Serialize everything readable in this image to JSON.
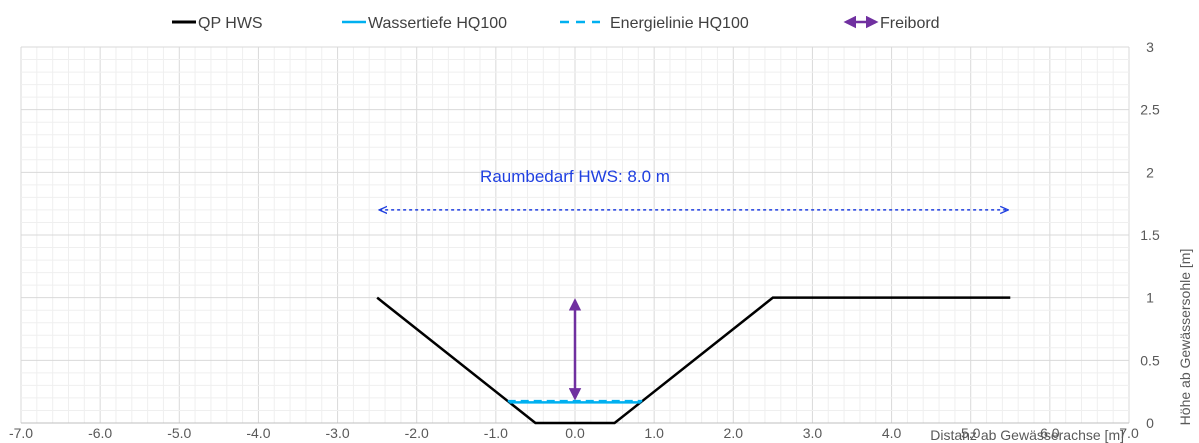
{
  "chart_data": {
    "type": "line",
    "xlabel": "Distanz ab Gewässerachse [m]",
    "ylabel": "Höhe ab Gewässersohle [m]",
    "xlim": [
      -7,
      7
    ],
    "ylim": [
      0,
      3
    ],
    "x_ticks": [
      "-7.0",
      "-6.0",
      "-5.0",
      "-4.0",
      "-3.0",
      "-2.0",
      "-1.0",
      "0.0",
      "1.0",
      "2.0",
      "3.0",
      "4.0",
      "5.0",
      "6.0",
      "7.0"
    ],
    "y_ticks": [
      "0",
      "0.5",
      "1",
      "1.5",
      "2",
      "2.5",
      "3"
    ],
    "y_axis_side": "right",
    "grid": true,
    "legend_position": "top",
    "series": [
      {
        "name": "QP HWS",
        "color": "#000000",
        "style": "solid",
        "points": [
          [
            -2.5,
            1.0
          ],
          [
            -0.5,
            0.0
          ],
          [
            0.5,
            0.0
          ],
          [
            2.5,
            1.0
          ],
          [
            5.5,
            1.0
          ]
        ]
      },
      {
        "name": "Wassertiefe HQ100",
        "color": "#00B0F0",
        "style": "solid",
        "points": [
          [
            -0.83,
            0.165
          ],
          [
            0.83,
            0.165
          ]
        ]
      },
      {
        "name": "Energielinie HQ100",
        "color": "#00B0F0",
        "style": "dashed",
        "points": [
          [
            -0.85,
            0.175
          ],
          [
            0.85,
            0.175
          ]
        ]
      },
      {
        "name": "Freibord",
        "color": "#7030A0",
        "style": "double-arrow",
        "points": [
          [
            0.0,
            0.175
          ],
          [
            0.0,
            1.0
          ]
        ]
      }
    ],
    "annotations": [
      {
        "text": "Raumbedarf HWS:  8.0 m",
        "color": "#1F3FE0",
        "x": 0.0,
        "y": 1.97
      }
    ],
    "width_arrow": {
      "color": "#1F3FE0",
      "style": "dotted-double-arrow",
      "x_start": -2.5,
      "x_end": 5.5,
      "y": 1.7
    }
  }
}
